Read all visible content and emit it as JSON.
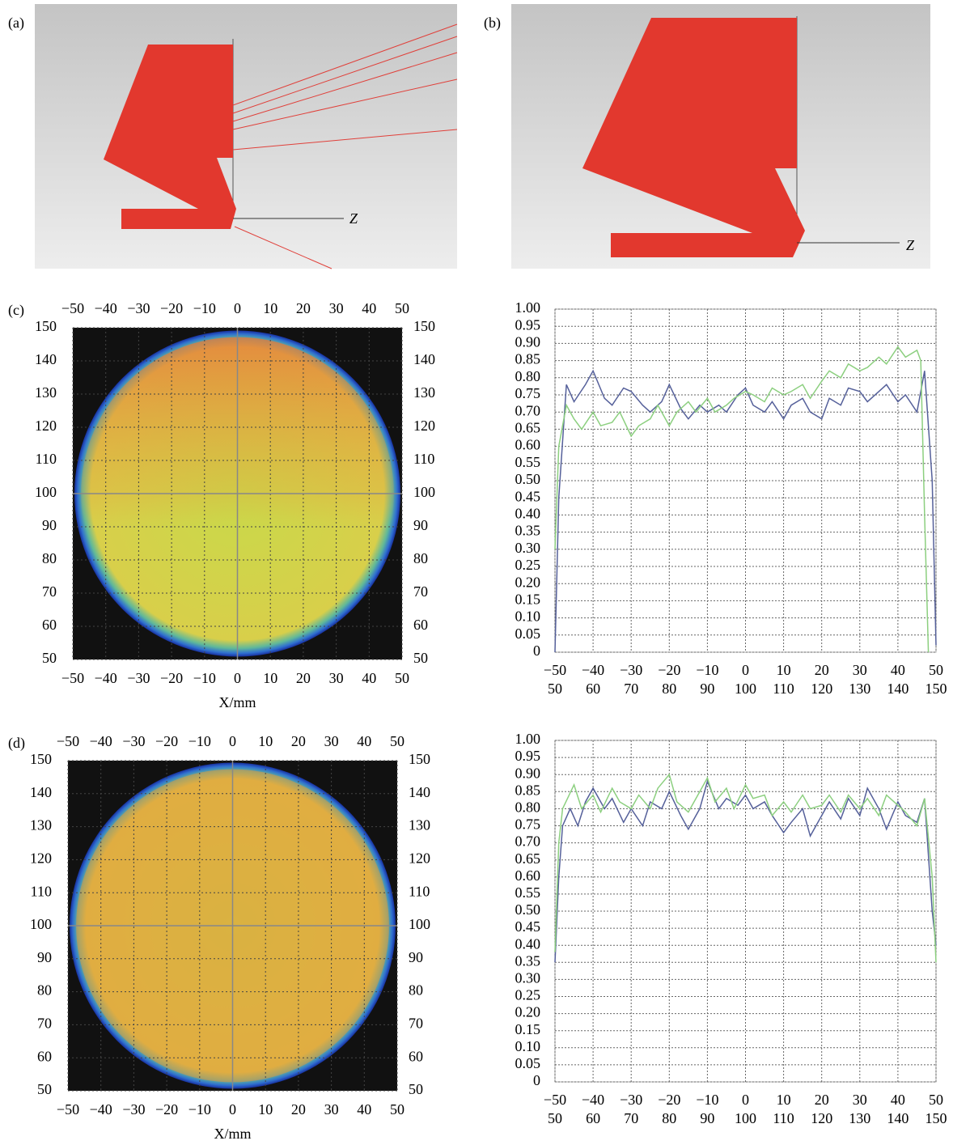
{
  "figures": [
    {
      "label": "(a)",
      "axis_label": "Z"
    },
    {
      "label": "(b)",
      "axis_label": "Z"
    }
  ],
  "chart_data": [
    {
      "type": "image",
      "label": "(c)",
      "xlabel": "X/mm",
      "xlim": [
        -50,
        50
      ],
      "xticks": [
        {
          "value": -50,
          "label": "−50"
        },
        {
          "value": -40,
          "label": "−40"
        },
        {
          "value": -30,
          "label": "−30"
        },
        {
          "value": -20,
          "label": "−20"
        },
        {
          "value": -10,
          "label": "−10"
        },
        0,
        10,
        20,
        30,
        40,
        50
      ],
      "ylim": [
        50,
        150
      ],
      "yticks": [
        50,
        60,
        70,
        80,
        90,
        100,
        110,
        120,
        130,
        140,
        150
      ],
      "grid": true
    },
    {
      "type": "line",
      "xlim": [
        -50,
        50
      ],
      "xticks": [
        {
          "value": -50,
          "label": "−50"
        },
        {
          "value": -40,
          "label": "−40"
        },
        {
          "value": -30,
          "label": "−30"
        },
        {
          "value": -20,
          "label": "−20"
        },
        {
          "value": -10,
          "label": "−10"
        },
        0,
        10,
        20,
        30,
        40,
        50
      ],
      "x_color": "#1a1aff",
      "x2lim": [
        50,
        150
      ],
      "x2ticks": [
        50,
        60,
        70,
        80,
        90,
        100,
        110,
        120,
        130,
        140,
        150
      ],
      "x2_color": "#33c033",
      "ylim": [
        0,
        1
      ],
      "yticks": [
        0,
        {
          "value": 0.05,
          "label": "0.05"
        },
        {
          "value": 0.1,
          "label": "0.10"
        },
        {
          "value": 0.15,
          "label": "0.15"
        },
        {
          "value": 0.2,
          "label": "0.20"
        },
        {
          "value": 0.25,
          "label": "0.25"
        },
        {
          "value": 0.3,
          "label": "0.30"
        },
        {
          "value": 0.35,
          "label": "0.35"
        },
        {
          "value": 0.4,
          "label": "0.40"
        },
        {
          "value": 0.45,
          "label": "0.45"
        },
        {
          "value": 0.5,
          "label": "0.50"
        },
        {
          "value": 0.55,
          "label": "0.55"
        },
        {
          "value": 0.6,
          "label": "0.60"
        },
        {
          "value": 0.65,
          "label": "0.65"
        },
        {
          "value": 0.7,
          "label": "0.70"
        },
        {
          "value": 0.75,
          "label": "0.75"
        },
        {
          "value": 0.8,
          "label": "0.80"
        },
        {
          "value": 0.85,
          "label": "0.85"
        },
        {
          "value": 0.9,
          "label": "0.90"
        },
        {
          "value": 0.95,
          "label": "0.95"
        },
        {
          "value": 1,
          "label": "1.00"
        }
      ],
      "grid": true,
      "series": [
        {
          "color": "#55609a",
          "x": [
            -50,
            -49,
            -47,
            -45,
            -42,
            -40,
            -37,
            -35,
            -32,
            -30,
            -27,
            -25,
            -22,
            -20,
            -17,
            -15,
            -12,
            -10,
            -7,
            -5,
            -2,
            0,
            2,
            5,
            7,
            10,
            12,
            15,
            17,
            20,
            22,
            25,
            27,
            30,
            32,
            35,
            37,
            40,
            42,
            45,
            47,
            49,
            50
          ],
          "values": [
            0,
            0.45,
            0.78,
            0.73,
            0.78,
            0.82,
            0.74,
            0.72,
            0.77,
            0.76,
            0.72,
            0.7,
            0.73,
            0.78,
            0.71,
            0.68,
            0.72,
            0.7,
            0.72,
            0.7,
            0.75,
            0.77,
            0.72,
            0.7,
            0.73,
            0.68,
            0.72,
            0.74,
            0.7,
            0.68,
            0.74,
            0.72,
            0.77,
            0.76,
            0.73,
            0.76,
            0.78,
            0.73,
            0.75,
            0.7,
            0.82,
            0.5,
            0.02
          ]
        },
        {
          "color": "#8ccf7f",
          "axis": "x2",
          "x": [
            50,
            51,
            53,
            55,
            57,
            60,
            62,
            65,
            67,
            70,
            72,
            75,
            77,
            80,
            82,
            85,
            87,
            90,
            92,
            95,
            97,
            100,
            102,
            105,
            107,
            110,
            112,
            115,
            117,
            120,
            122,
            125,
            127,
            130,
            132,
            135,
            137,
            140,
            142,
            145,
            146,
            147,
            148
          ],
          "values": [
            0.3,
            0.6,
            0.72,
            0.68,
            0.65,
            0.7,
            0.66,
            0.67,
            0.7,
            0.63,
            0.66,
            0.68,
            0.72,
            0.66,
            0.7,
            0.73,
            0.7,
            0.74,
            0.7,
            0.72,
            0.74,
            0.76,
            0.75,
            0.73,
            0.77,
            0.75,
            0.76,
            0.78,
            0.74,
            0.79,
            0.82,
            0.8,
            0.84,
            0.82,
            0.83,
            0.86,
            0.84,
            0.89,
            0.86,
            0.88,
            0.85,
            0.4,
            0
          ]
        }
      ]
    },
    {
      "type": "image",
      "label": "(d)",
      "xlabel": "X/mm",
      "xlim": [
        -50,
        50
      ],
      "xticks": [
        {
          "value": -50,
          "label": "−50"
        },
        {
          "value": -40,
          "label": "−40"
        },
        {
          "value": -30,
          "label": "−30"
        },
        {
          "value": -20,
          "label": "−20"
        },
        {
          "value": -10,
          "label": "−10"
        },
        0,
        10,
        20,
        30,
        40,
        50
      ],
      "ylim": [
        50,
        150
      ],
      "yticks": [
        50,
        60,
        70,
        80,
        90,
        100,
        110,
        120,
        130,
        140,
        150
      ],
      "grid": true
    },
    {
      "type": "line",
      "xlim": [
        -50,
        50
      ],
      "xticks": [
        {
          "value": -50,
          "label": "−50"
        },
        {
          "value": -40,
          "label": "−40"
        },
        {
          "value": -30,
          "label": "−30"
        },
        {
          "value": -20,
          "label": "−20"
        },
        {
          "value": -10,
          "label": "−10"
        },
        0,
        10,
        20,
        30,
        40,
        50
      ],
      "x_color": "#1a1aff",
      "x2lim": [
        50,
        150
      ],
      "x2ticks": [
        50,
        60,
        70,
        80,
        90,
        100,
        110,
        120,
        130,
        140,
        150
      ],
      "x2_color": "#33c033",
      "ylim": [
        0,
        1
      ],
      "yticks": [
        0,
        {
          "value": 0.05,
          "label": "0.05"
        },
        {
          "value": 0.1,
          "label": "0.10"
        },
        {
          "value": 0.15,
          "label": "0.15"
        },
        {
          "value": 0.2,
          "label": "0.20"
        },
        {
          "value": 0.25,
          "label": "0.25"
        },
        {
          "value": 0.3,
          "label": "0.30"
        },
        {
          "value": 0.35,
          "label": "0.35"
        },
        {
          "value": 0.4,
          "label": "0.40"
        },
        {
          "value": 0.45,
          "label": "0.45"
        },
        {
          "value": 0.5,
          "label": "0.50"
        },
        {
          "value": 0.55,
          "label": "0.55"
        },
        {
          "value": 0.6,
          "label": "0.60"
        },
        {
          "value": 0.65,
          "label": "0.65"
        },
        {
          "value": 0.7,
          "label": "0.70"
        },
        {
          "value": 0.75,
          "label": "0.75"
        },
        {
          "value": 0.8,
          "label": "0.80"
        },
        {
          "value": 0.85,
          "label": "0.85"
        },
        {
          "value": 0.9,
          "label": "0.90"
        },
        {
          "value": 0.95,
          "label": "0.95"
        },
        {
          "value": 1,
          "label": "1.00"
        }
      ],
      "grid": true,
      "series": [
        {
          "color": "#55609a",
          "x": [
            -50,
            -49,
            -48,
            -46,
            -44,
            -42,
            -40,
            -37,
            -35,
            -32,
            -30,
            -27,
            -25,
            -22,
            -20,
            -17,
            -15,
            -12,
            -10,
            -7,
            -5,
            -2,
            0,
            2,
            5,
            7,
            10,
            12,
            15,
            17,
            20,
            22,
            25,
            27,
            30,
            32,
            35,
            37,
            40,
            42,
            45,
            47,
            49,
            50
          ],
          "values": [
            0.35,
            0.6,
            0.75,
            0.8,
            0.75,
            0.82,
            0.86,
            0.8,
            0.83,
            0.76,
            0.8,
            0.75,
            0.82,
            0.8,
            0.85,
            0.78,
            0.74,
            0.8,
            0.88,
            0.8,
            0.83,
            0.81,
            0.84,
            0.8,
            0.82,
            0.78,
            0.73,
            0.76,
            0.8,
            0.72,
            0.78,
            0.82,
            0.77,
            0.83,
            0.78,
            0.86,
            0.8,
            0.74,
            0.82,
            0.78,
            0.76,
            0.83,
            0.5,
            0.4
          ]
        },
        {
          "color": "#8ccf7f",
          "axis": "x2",
          "x": [
            50,
            51,
            52,
            55,
            57,
            60,
            62,
            65,
            67,
            70,
            72,
            75,
            77,
            80,
            82,
            85,
            87,
            90,
            92,
            95,
            97,
            100,
            102,
            105,
            107,
            110,
            112,
            115,
            117,
            120,
            122,
            125,
            127,
            130,
            132,
            135,
            137,
            140,
            142,
            145,
            147,
            149,
            150
          ],
          "values": [
            0.38,
            0.7,
            0.8,
            0.87,
            0.8,
            0.84,
            0.79,
            0.86,
            0.82,
            0.8,
            0.84,
            0.8,
            0.86,
            0.9,
            0.82,
            0.79,
            0.83,
            0.89,
            0.82,
            0.86,
            0.8,
            0.87,
            0.83,
            0.84,
            0.78,
            0.82,
            0.79,
            0.84,
            0.8,
            0.81,
            0.84,
            0.79,
            0.84,
            0.8,
            0.83,
            0.78,
            0.84,
            0.81,
            0.79,
            0.75,
            0.83,
            0.6,
            0.35
          ]
        }
      ]
    }
  ]
}
